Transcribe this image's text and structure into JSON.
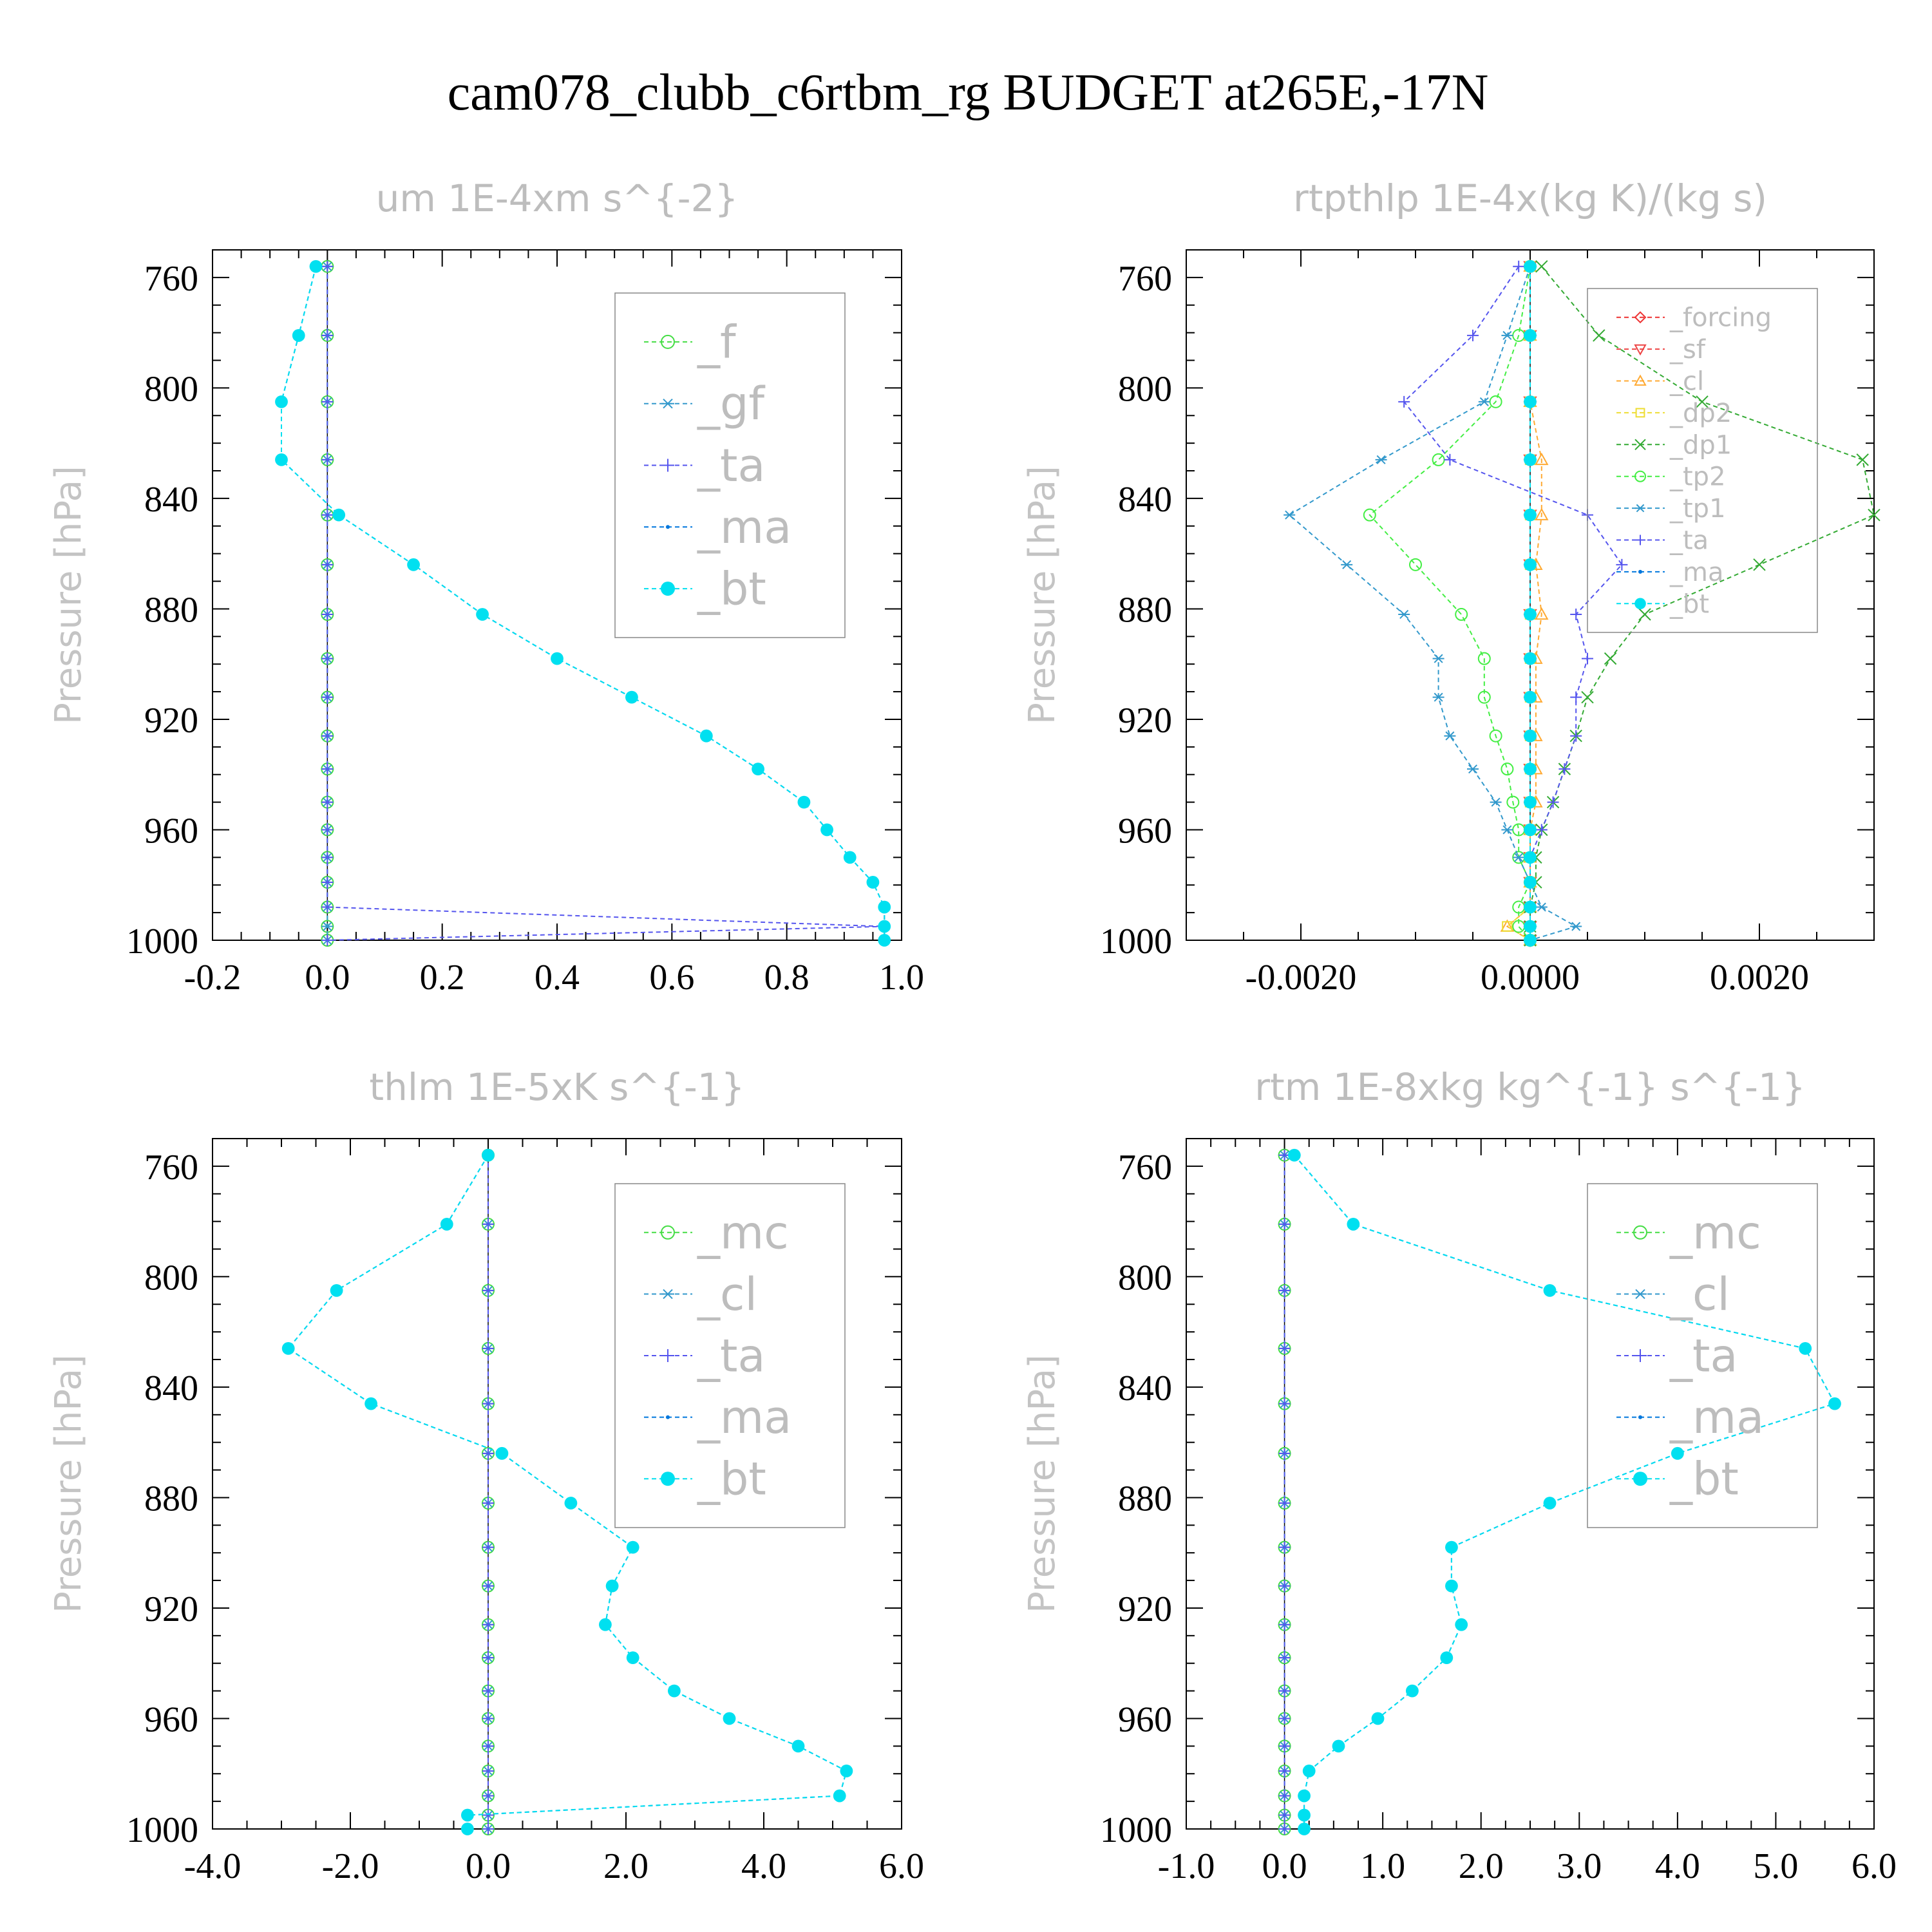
{
  "title": "cam078_clubb_c6rtbm_rg  BUDGET at265E,-17N",
  "chart_data": [
    {
      "type": "line",
      "title": "um  1E-4xm s^{-2}",
      "ylabel": "Pressure [hPa]",
      "xlim": [
        -0.2,
        1.0
      ],
      "xticks": [
        "-0.2",
        "0.0",
        "0.2",
        "0.4",
        "0.6",
        "0.8",
        "1.0"
      ],
      "ylim": [
        750,
        1000
      ],
      "yticks": [
        "760",
        "800",
        "840",
        "880",
        "920",
        "960",
        "1000"
      ],
      "levels": [
        756,
        781,
        805,
        826,
        846,
        864,
        882,
        898,
        912,
        926,
        938,
        950,
        960,
        970,
        979,
        988,
        995,
        1000
      ],
      "legend": [
        "_f",
        "_gf",
        "_ta",
        "_ma",
        "_bt"
      ],
      "series": [
        {
          "name": "_f",
          "color": "#44dd44",
          "marker": "circle",
          "values": [
            0,
            0,
            0,
            0,
            0,
            0,
            0,
            0,
            0,
            0,
            0,
            0,
            0,
            0,
            0,
            0,
            0,
            0
          ]
        },
        {
          "name": "_gf",
          "color": "#3399cc",
          "marker": "star",
          "values": [
            0,
            0,
            0,
            0,
            0,
            0,
            0,
            0,
            0,
            0,
            0,
            0,
            0,
            0,
            0,
            0,
            0,
            0
          ]
        },
        {
          "name": "_ta",
          "color": "#5555ee",
          "marker": "plus",
          "values": [
            0,
            0,
            0,
            0,
            0,
            0,
            0,
            0,
            0,
            0,
            0,
            0,
            0,
            0,
            0,
            0,
            0.97,
            0
          ]
        },
        {
          "name": "_ma",
          "color": "#0077dd",
          "marker": "dot",
          "values": [
            -0.02,
            -0.05,
            -0.08,
            -0.08,
            0.02,
            0.15,
            0.27,
            0.4,
            0.53,
            0.66,
            0.75,
            0.83,
            0.87,
            0.91,
            0.95,
            0.97,
            0.97,
            0.97
          ]
        },
        {
          "name": "_bt",
          "color": "#00e0f0",
          "marker": "bigdot",
          "values": [
            -0.02,
            -0.05,
            -0.08,
            -0.08,
            0.02,
            0.15,
            0.27,
            0.4,
            0.53,
            0.66,
            0.75,
            0.83,
            0.87,
            0.91,
            0.95,
            0.97,
            0.97,
            0.97
          ]
        }
      ]
    },
    {
      "type": "line",
      "title": "rtpthlp  1E-4x(kg K)/(kg s)",
      "ylabel": "Pressure [hPa]",
      "xlim": [
        -0.003,
        0.003
      ],
      "xticks": [
        "-0.0020",
        "0.0000",
        "0.0020"
      ],
      "ylim": [
        750,
        1000
      ],
      "yticks": [
        "760",
        "800",
        "840",
        "880",
        "920",
        "960",
        "1000"
      ],
      "levels": [
        756,
        781,
        805,
        826,
        846,
        864,
        882,
        898,
        912,
        926,
        938,
        950,
        960,
        970,
        979,
        988,
        995,
        1000
      ],
      "legend": [
        "_forcing",
        "_sf",
        "_cl",
        "_dp2",
        "_dp1",
        "_tp2",
        "_tp1",
        "_ta",
        "_ma",
        "_bt"
      ],
      "series": [
        {
          "name": "_forcing",
          "color": "#ee3333",
          "marker": "diamond",
          "values": [
            0,
            0,
            0,
            0,
            0,
            0,
            0,
            0,
            0,
            0,
            0,
            0,
            0,
            0,
            0,
            0,
            0,
            0
          ]
        },
        {
          "name": "_sf",
          "color": "#ee4444",
          "marker": "tridown",
          "values": [
            0,
            0,
            0,
            0,
            0,
            0,
            0,
            0,
            0,
            0,
            0,
            0,
            0,
            0,
            0,
            0,
            0,
            0
          ]
        },
        {
          "name": "_cl",
          "color": "#ffaa33",
          "marker": "triup",
          "values": [
            0,
            0,
            0,
            0.0001,
            0.0001,
            5e-05,
            0.0001,
            5e-05,
            5e-05,
            5e-05,
            5e-05,
            5e-05,
            0,
            0,
            0,
            0,
            -0.0002,
            0
          ]
        },
        {
          "name": "_dp2",
          "color": "#eedd33",
          "marker": "square",
          "values": [
            0,
            0,
            0,
            0,
            0,
            0,
            0,
            0,
            0,
            0,
            0,
            0,
            0,
            0,
            0,
            0,
            -0.0002,
            0
          ]
        },
        {
          "name": "_dp1",
          "color": "#33aa33",
          "marker": "x",
          "values": [
            0.0001,
            0.0006,
            0.0015,
            0.0029,
            0.003,
            0.002,
            0.001,
            0.0007,
            0.0005,
            0.0004,
            0.0003,
            0.0002,
            0.0001,
            5e-05,
            5e-05,
            0,
            0,
            0
          ]
        },
        {
          "name": "_tp2",
          "color": "#44ee44",
          "marker": "circle",
          "values": [
            0,
            -0.0001,
            -0.0003,
            -0.0008,
            -0.0014,
            -0.001,
            -0.0006,
            -0.0004,
            -0.0004,
            -0.0003,
            -0.0002,
            -0.00015,
            -0.0001,
            -0.0001,
            0,
            -0.0001,
            -0.0001,
            0
          ]
        },
        {
          "name": "_tp1",
          "color": "#3399cc",
          "marker": "star",
          "values": [
            0,
            -0.0002,
            -0.0004,
            -0.0013,
            -0.0021,
            -0.0016,
            -0.0011,
            -0.0008,
            -0.0008,
            -0.0007,
            -0.0005,
            -0.0003,
            -0.0002,
            -0.0001,
            0,
            0.0001,
            0.0004,
            0
          ]
        },
        {
          "name": "_ta",
          "color": "#5555ee",
          "marker": "plus",
          "values": [
            -0.0001,
            -0.0005,
            -0.0011,
            -0.0007,
            0.0005,
            0.0008,
            0.0004,
            0.0005,
            0.0004,
            0.0004,
            0.0003,
            0.0002,
            0.0001,
            0,
            0,
            0,
            0,
            0
          ]
        },
        {
          "name": "_ma",
          "color": "#0077dd",
          "marker": "dot",
          "values": [
            0,
            0,
            0,
            0,
            0,
            0,
            0,
            0,
            0,
            0,
            0,
            0,
            0,
            0,
            0,
            0,
            0,
            0
          ]
        },
        {
          "name": "_bt",
          "color": "#00e0f0",
          "marker": "bigdot",
          "values": [
            0,
            0,
            0,
            0,
            0,
            0,
            0,
            0,
            0,
            0,
            0,
            0,
            0,
            0,
            0,
            0,
            0,
            0
          ]
        }
      ]
    },
    {
      "type": "line",
      "title": "thlm  1E-5xK s^{-1}",
      "ylabel": "Pressure [hPa]",
      "xlim": [
        -4.0,
        6.0
      ],
      "xticks": [
        "-4.0",
        "-2.0",
        "0.0",
        "2.0",
        "4.0",
        "6.0"
      ],
      "ylim": [
        750,
        1000
      ],
      "yticks": [
        "760",
        "800",
        "840",
        "880",
        "920",
        "960",
        "1000"
      ],
      "levels": [
        756,
        781,
        805,
        826,
        846,
        864,
        882,
        898,
        912,
        926,
        938,
        950,
        960,
        970,
        979,
        988,
        995,
        1000
      ],
      "legend": [
        "_mc",
        "_cl",
        "_ta",
        "_ma",
        "_bt"
      ],
      "series": [
        {
          "name": "_mc",
          "color": "#44dd44",
          "marker": "circle",
          "values": [
            0,
            0,
            0,
            0,
            0,
            0,
            0,
            0,
            0,
            0,
            0,
            0,
            0,
            0,
            0,
            0,
            0,
            0
          ]
        },
        {
          "name": "_cl",
          "color": "#3399cc",
          "marker": "star",
          "values": [
            0,
            0,
            0,
            0,
            0,
            0,
            0,
            0,
            0,
            0,
            0,
            0,
            0,
            0,
            0,
            0,
            0,
            0
          ]
        },
        {
          "name": "_ta",
          "color": "#5555ee",
          "marker": "plus",
          "values": [
            0,
            0,
            0,
            0,
            0,
            0,
            0,
            0,
            0,
            0,
            0,
            0,
            0,
            0,
            0,
            0,
            0,
            0
          ]
        },
        {
          "name": "_ma",
          "color": "#0077dd",
          "marker": "dot",
          "values": [
            0,
            -0.6,
            -2.2,
            -2.9,
            -1.7,
            0.2,
            1.2,
            2.1,
            1.8,
            1.7,
            2.1,
            2.7,
            3.5,
            4.5,
            5.2,
            5.1,
            -0.3,
            -0.3
          ]
        },
        {
          "name": "_bt",
          "color": "#00e0f0",
          "marker": "bigdot",
          "values": [
            0,
            -0.6,
            -2.2,
            -2.9,
            -1.7,
            0.2,
            1.2,
            2.1,
            1.8,
            1.7,
            2.1,
            2.7,
            3.5,
            4.5,
            5.2,
            5.1,
            -0.3,
            -0.3
          ]
        }
      ]
    },
    {
      "type": "line",
      "title": "rtm  1E-8xkg kg^{-1} s^{-1}",
      "ylabel": "Pressure [hPa]",
      "xlim": [
        -1.0,
        6.0
      ],
      "xticks": [
        "-1.0",
        "0.0",
        "1.0",
        "2.0",
        "3.0",
        "4.0",
        "5.0",
        "6.0"
      ],
      "ylim": [
        750,
        1000
      ],
      "yticks": [
        "760",
        "800",
        "840",
        "880",
        "920",
        "960",
        "1000"
      ],
      "levels": [
        756,
        781,
        805,
        826,
        846,
        864,
        882,
        898,
        912,
        926,
        938,
        950,
        960,
        970,
        979,
        988,
        995,
        1000
      ],
      "legend": [
        "_mc",
        "_cl",
        "_ta",
        "_ma",
        "_bt"
      ],
      "series": [
        {
          "name": "_mc",
          "color": "#44dd44",
          "marker": "circle",
          "values": [
            0,
            0,
            0,
            0,
            0,
            0,
            0,
            0,
            0,
            0,
            0,
            0,
            0,
            0,
            0,
            0,
            0,
            0
          ]
        },
        {
          "name": "_cl",
          "color": "#3399cc",
          "marker": "star",
          "values": [
            0,
            0,
            0,
            0,
            0,
            0,
            0,
            0,
            0,
            0,
            0,
            0,
            0,
            0,
            0,
            0,
            0,
            0
          ]
        },
        {
          "name": "_ta",
          "color": "#5555ee",
          "marker": "plus",
          "values": [
            0,
            0,
            0,
            0,
            0,
            0,
            0,
            0,
            0,
            0,
            0,
            0,
            0,
            0,
            0,
            0,
            0,
            0
          ]
        },
        {
          "name": "_ma",
          "color": "#0077dd",
          "marker": "dot",
          "values": [
            0.1,
            0.7,
            2.7,
            5.3,
            5.6,
            4.0,
            2.7,
            1.7,
            1.7,
            1.8,
            1.65,
            1.3,
            0.95,
            0.55,
            0.25,
            0.2,
            0.2,
            0.2
          ]
        },
        {
          "name": "_bt",
          "color": "#00e0f0",
          "marker": "bigdot",
          "values": [
            0.1,
            0.7,
            2.7,
            5.3,
            5.6,
            4.0,
            2.7,
            1.7,
            1.7,
            1.8,
            1.65,
            1.3,
            0.95,
            0.55,
            0.25,
            0.2,
            0.2,
            0.2
          ]
        }
      ]
    }
  ]
}
